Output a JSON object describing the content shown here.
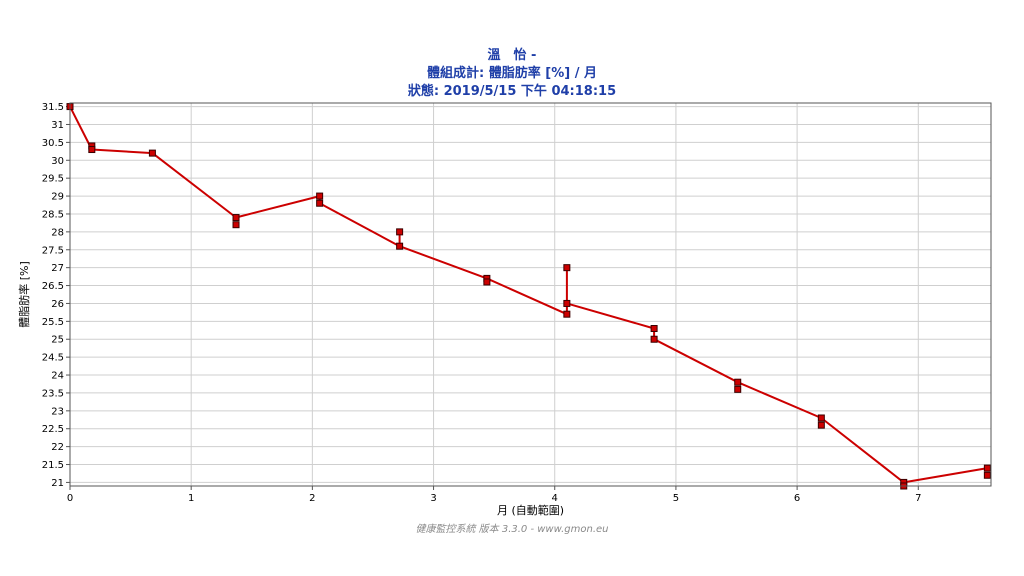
{
  "chart_data": {
    "type": "line",
    "title_line1": "溫　怡 -",
    "title_line2": "體組成計: 體脂肪率 [%] / 月",
    "title_line3": "狀態: 2019/5/15 下午 04:18:15",
    "xlabel": "月 (自動範圍)",
    "ylabel": "體脂肪率 [%]",
    "xlim": [
      0,
      7.6
    ],
    "ylim": [
      20.9,
      31.6
    ],
    "x_ticks": [
      "0",
      "1",
      "2",
      "3",
      "4",
      "5",
      "6",
      "7"
    ],
    "y_ticks": [
      "21",
      "21.5",
      "22",
      "22.5",
      "23",
      "23.5",
      "24",
      "24.5",
      "25",
      "25.5",
      "26",
      "26.5",
      "27",
      "27.5",
      "28",
      "28.5",
      "29",
      "29.5",
      "30",
      "30.5",
      "31",
      "31.5"
    ],
    "grid": true,
    "series": [
      {
        "color": "#cc0000",
        "x": [
          0.0,
          0.18,
          0.18,
          0.68,
          1.37,
          1.37,
          2.06,
          2.06,
          2.72,
          2.72,
          3.44,
          3.44,
          4.1,
          4.1,
          4.1,
          4.82,
          4.82,
          5.51,
          5.51,
          6.2,
          6.2,
          6.88,
          6.88,
          7.57,
          7.57
        ],
        "y": [
          31.5,
          30.4,
          30.3,
          30.2,
          28.4,
          28.2,
          29.0,
          28.8,
          28.0,
          27.6,
          26.7,
          26.6,
          27.0,
          26.0,
          25.7,
          25.3,
          25.0,
          23.8,
          23.6,
          22.8,
          22.6,
          21.0,
          20.9,
          21.4,
          21.2
        ],
        "line_path": [
          [
            0.0,
            31.5
          ],
          [
            0.18,
            30.3
          ],
          [
            0.68,
            30.2
          ],
          [
            1.37,
            28.4
          ],
          [
            2.06,
            29.0
          ],
          [
            2.06,
            28.8
          ],
          [
            2.72,
            27.6
          ],
          [
            2.72,
            28.0
          ],
          [
            2.72,
            27.6
          ],
          [
            3.44,
            26.7
          ],
          [
            4.1,
            25.7
          ],
          [
            4.1,
            27.0
          ],
          [
            4.1,
            26.0
          ],
          [
            4.82,
            25.3
          ],
          [
            4.82,
            25.0
          ],
          [
            5.51,
            23.8
          ],
          [
            6.2,
            22.8
          ],
          [
            6.88,
            21.0
          ],
          [
            7.57,
            21.4
          ]
        ]
      }
    ]
  },
  "footer": "健康監控系統 版本 3.3.0 - www.gmon.eu"
}
